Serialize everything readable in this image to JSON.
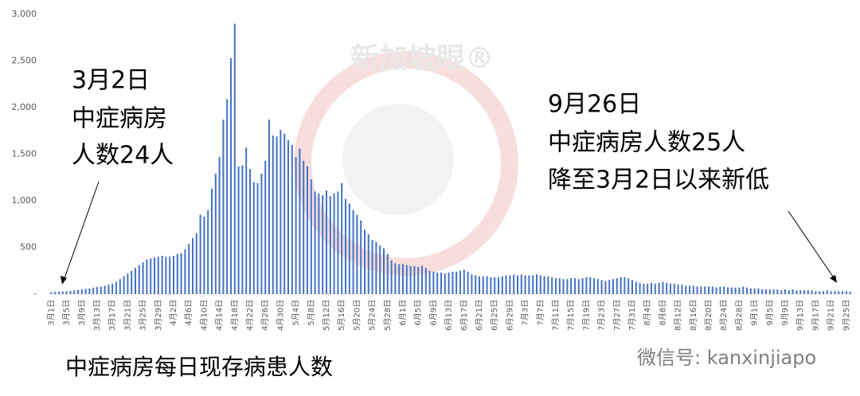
{
  "chart_data": {
    "type": "bar",
    "title": "中症病房每日现存病患人数",
    "watermark": "新加坡眼®",
    "credit": "微信号: kanxinjiapo",
    "annotations_left": [
      "3月2日",
      "中症病房",
      "人数24人"
    ],
    "annotations_right": [
      "9月26日",
      "中症病房人数25人",
      "降至3月2日以来新低"
    ],
    "color": "#4472c4",
    "ylim": [
      0,
      3000
    ],
    "yticks": [
      {
        "value": 0,
        "label": "-"
      },
      500,
      {
        "value": 1000,
        "label": "1,000"
      },
      {
        "value": 1500,
        "label": "1,500"
      },
      {
        "value": 2000,
        "label": "2,000"
      },
      {
        "value": 2500,
        "label": "2,500"
      },
      {
        "value": 3000,
        "label": "3,000"
      }
    ],
    "categories": [
      "3月1日",
      null,
      null,
      null,
      "3月5日",
      null,
      null,
      null,
      "3月9日",
      null,
      null,
      null,
      "3月13日",
      null,
      null,
      null,
      "3月17日",
      null,
      null,
      null,
      "3月21日",
      null,
      null,
      null,
      "3月25日",
      null,
      null,
      null,
      "3月29日",
      null,
      null,
      null,
      "4月2日",
      null,
      null,
      null,
      "4月6日",
      null,
      null,
      null,
      "4月10日",
      null,
      null,
      null,
      "4月14日",
      null,
      null,
      null,
      "4月18日",
      null,
      null,
      null,
      "4月22日",
      null,
      null,
      null,
      "4月26日",
      null,
      null,
      null,
      "4月30日",
      null,
      null,
      null,
      "5月4日",
      null,
      null,
      null,
      "5月8日",
      null,
      null,
      null,
      "5月12日",
      null,
      null,
      null,
      "5月16日",
      null,
      null,
      null,
      "5月20日",
      null,
      null,
      null,
      "5月24日",
      null,
      null,
      null,
      "5月28日",
      null,
      null,
      null,
      "6月1日",
      null,
      null,
      null,
      "6月5日",
      null,
      null,
      null,
      "6月9日",
      null,
      null,
      null,
      "6月13日",
      null,
      null,
      null,
      "6月17日",
      null,
      null,
      null,
      "6月21日",
      null,
      null,
      null,
      "6月25日",
      null,
      null,
      null,
      "6月29日",
      null,
      null,
      null,
      "7月3日",
      null,
      null,
      null,
      "7月7日",
      null,
      null,
      null,
      "7月11日",
      null,
      null,
      null,
      "7月15日",
      null,
      null,
      null,
      "7月19日",
      null,
      null,
      null,
      "7月23日",
      null,
      null,
      null,
      "7月27日",
      null,
      null,
      null,
      "7月31日",
      null,
      null,
      null,
      "8月4日",
      null,
      null,
      null,
      "8月8日",
      null,
      null,
      null,
      "8月12日",
      null,
      null,
      null,
      "8月16日",
      null,
      null,
      null,
      "8月20日",
      null,
      null,
      null,
      "8月24日",
      null,
      null,
      null,
      "8月28日",
      null,
      null,
      null,
      "9月1日",
      null,
      null,
      null,
      "9月5日",
      null,
      null,
      null,
      "9月9日",
      null,
      null,
      null,
      "9月13日",
      null,
      null,
      null,
      "9月17日",
      null,
      null,
      null,
      "9月21日",
      null,
      null,
      null,
      "9月25日",
      null
    ],
    "values": [
      20,
      24,
      25,
      28,
      30,
      35,
      40,
      45,
      50,
      55,
      60,
      68,
      75,
      80,
      90,
      100,
      110,
      130,
      160,
      190,
      220,
      250,
      280,
      310,
      340,
      370,
      380,
      390,
      400,
      410,
      400,
      400,
      410,
      430,
      440,
      480,
      540,
      600,
      650,
      850,
      830,
      900,
      1130,
      1290,
      1470,
      1870,
      2090,
      2530,
      2900,
      1370,
      1380,
      1570,
      1340,
      1200,
      1190,
      1290,
      1430,
      1870,
      1700,
      1690,
      1760,
      1720,
      1650,
      1600,
      1470,
      1560,
      1430,
      1370,
      1230,
      1100,
      1080,
      1060,
      1110,
      1050,
      1080,
      1100,
      1190,
      1020,
      970,
      900,
      850,
      790,
      690,
      640,
      580,
      560,
      520,
      490,
      430,
      360,
      330,
      320,
      320,
      310,
      300,
      300,
      290,
      300,
      280,
      250,
      240,
      230,
      230,
      220,
      230,
      240,
      240,
      250,
      260,
      240,
      210,
      200,
      190,
      190,
      190,
      180,
      180,
      180,
      190,
      200,
      200,
      210,
      200,
      210,
      200,
      200,
      200,
      210,
      200,
      190,
      190,
      180,
      170,
      170,
      160,
      160,
      170,
      170,
      160,
      170,
      180,
      180,
      170,
      160,
      150,
      140,
      150,
      160,
      170,
      180,
      180,
      170,
      150,
      130,
      120,
      110,
      110,
      120,
      110,
      120,
      130,
      120,
      110,
      110,
      100,
      100,
      90,
      90,
      90,
      80,
      80,
      80,
      80,
      80,
      70,
      80,
      80,
      70,
      70,
      70,
      70,
      80,
      70,
      60,
      60,
      60,
      50,
      50,
      50,
      50,
      50,
      40,
      50,
      40,
      50,
      40,
      40,
      40,
      40,
      40,
      30,
      30,
      30,
      40,
      30,
      30,
      30,
      30,
      30,
      25
    ]
  }
}
